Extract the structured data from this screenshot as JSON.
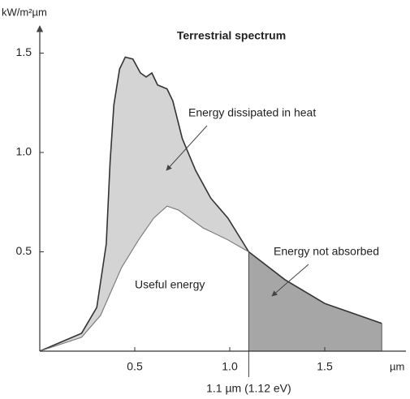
{
  "chart_data": {
    "type": "area",
    "title": "Terrestrial spectrum",
    "ylabel": "kW/m²µm",
    "xlabel": "µm",
    "xlim": [
      0,
      1.95
    ],
    "ylim": [
      0,
      1.6
    ],
    "xticks": [
      0.5,
      {
        "value": 1,
        "label": "1.0"
      },
      1.5
    ],
    "yticks": [
      0.5,
      {
        "value": 1,
        "label": "1.0"
      },
      1.5
    ],
    "series": [
      {
        "color": "#d4d4d4",
        "x": [
          0,
          0.22,
          0.3,
          0.35,
          0.37,
          0.39,
          0.42,
          0.45,
          0.49,
          0.53,
          0.56,
          0.59,
          0.62,
          0.67,
          0.7,
          0.75,
          0.82,
          0.9,
          0.99,
          1.1,
          1.29,
          1.5,
          1.8
        ],
        "values": [
          0,
          0.09,
          0.22,
          0.54,
          0.95,
          1.24,
          1.42,
          1.48,
          1.47,
          1.4,
          1.38,
          1.4,
          1.34,
          1.32,
          1.26,
          1.07,
          0.91,
          0.77,
          0.67,
          0.5,
          0.36,
          0.24,
          0.14
        ]
      },
      {
        "color": "#ffffff",
        "x": [
          0,
          0.22,
          0.32,
          0.43,
          0.52,
          0.6,
          0.67,
          0.73,
          0.86,
          0.99,
          1.1
        ],
        "values": [
          0,
          0.07,
          0.18,
          0.42,
          0.56,
          0.67,
          0.73,
          0.71,
          0.62,
          0.56,
          0.5
        ]
      }
    ],
    "cutoff": {
      "value": 1.1,
      "label": "1.1 µm (1.12 eV)",
      "color": "#a6a6a6"
    },
    "annotations": [
      "Energy dissipated in heat",
      "Energy not absorbed",
      "Useful energy"
    ]
  }
}
